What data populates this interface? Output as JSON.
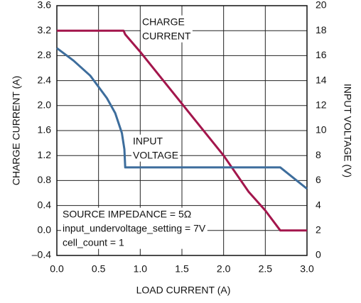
{
  "chart_data": {
    "type": "line",
    "xlabel": "LOAD CURRENT (A)",
    "ylabel": "CHARGE CURRENT (A)",
    "y2label": "INPUT VOLTAGE (V)",
    "xlim": [
      0,
      3
    ],
    "xticks": [
      {
        "value": 0,
        "label": "0.0"
      },
      0.5,
      {
        "value": 1,
        "label": "1.0"
      },
      1.5,
      {
        "value": 2,
        "label": "2.0"
      },
      2.5,
      {
        "value": 3,
        "label": "3.0"
      }
    ],
    "ylim": [
      -0.4,
      3.6
    ],
    "yticks": [
      {
        "value": -0.4,
        "label": "–0.4"
      },
      {
        "value": 0,
        "label": "0.0"
      },
      0.4,
      0.8,
      1.2,
      1.6,
      {
        "value": 2,
        "label": "2.0"
      },
      2.4,
      2.8,
      3.2,
      3.6
    ],
    "y2lim": [
      0,
      20
    ],
    "y2ticks": [
      0,
      2,
      4,
      6,
      8,
      10,
      12,
      14,
      16,
      18,
      20
    ],
    "grid": true,
    "series": [
      {
        "name": "CHARGE CURRENT",
        "color": "#a3164c",
        "x": [
          0,
          0.8,
          0.82,
          1.0,
          1.5,
          2.0,
          2.3,
          2.5,
          2.68,
          3.0
        ],
        "values": [
          3.2,
          3.2,
          3.14,
          2.86,
          2.03,
          1.2,
          0.62,
          0.32,
          0,
          0
        ]
      },
      {
        "name": "INPUT VOLTAGE",
        "color": "#3d6d9c",
        "axis": "y2",
        "x": [
          0,
          0.2,
          0.4,
          0.6,
          0.7,
          0.78,
          0.81,
          0.82,
          2.68,
          3.0
        ],
        "values": [
          16.6,
          15.6,
          14.4,
          12.6,
          11.4,
          9.8,
          8.5,
          7.05,
          7.05,
          5.34
        ]
      }
    ],
    "annotations": [
      {
        "lines": [
          "CHARGE",
          "CURRENT"
        ]
      },
      {
        "lines": [
          "INPUT",
          "VOLTAGE"
        ]
      },
      {
        "lines": [
          "SOURCE IMPEDANCE = 5Ω",
          "input_undervoltage_setting = 7V",
          "cell_count = 1"
        ]
      }
    ]
  }
}
